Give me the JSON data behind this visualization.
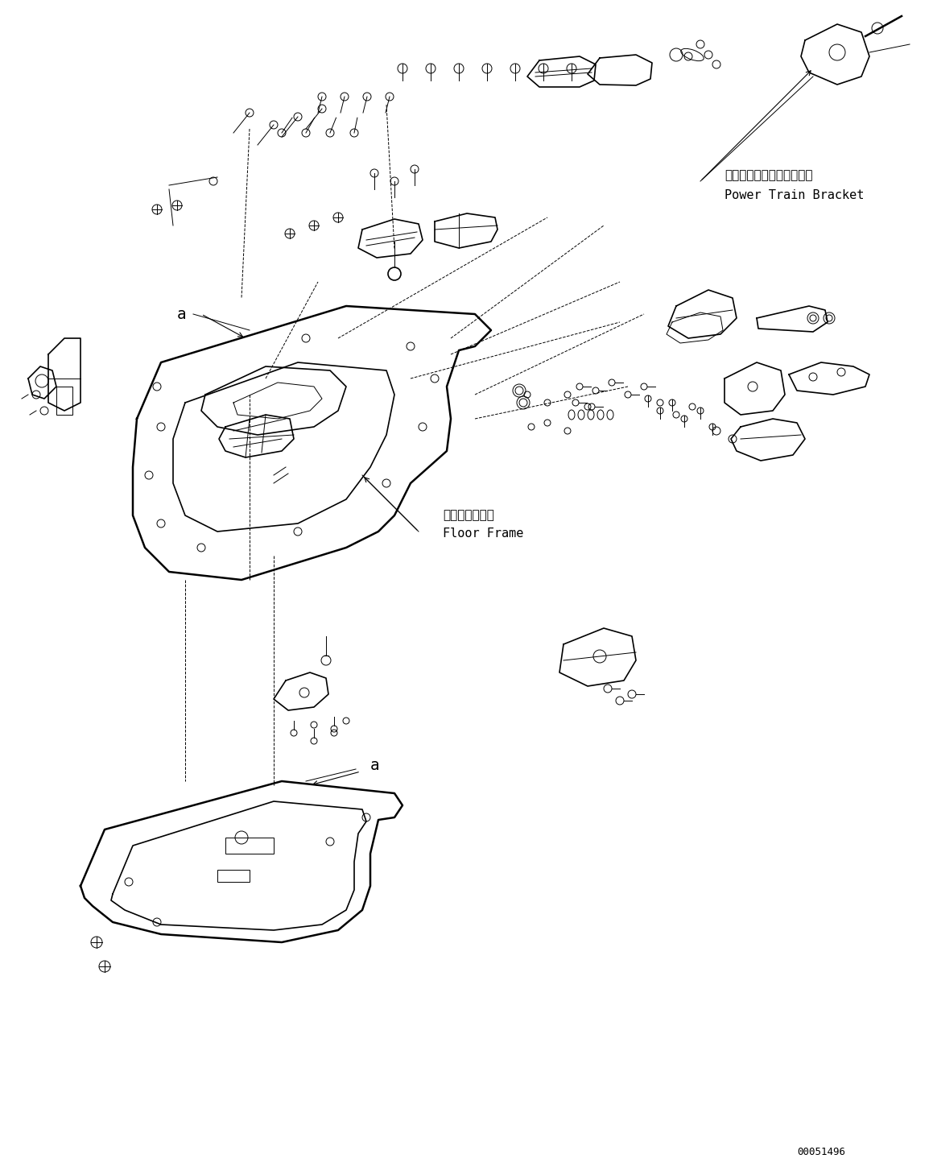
{
  "background_color": "#ffffff",
  "line_color": "#000000",
  "figure_width": 11.59,
  "figure_height": 14.59,
  "dpi": 100,
  "label_power_train_jp": "パワートレインブラケット",
  "label_power_train_en": "Power Train Bracket",
  "label_floor_frame_jp": "フロアフレーム",
  "label_floor_frame_en": "Floor Frame",
  "label_a1": "a",
  "label_a2": "a",
  "part_number": "00051496",
  "lw": 1.2,
  "lw_thin": 0.7,
  "lw_thick": 1.8
}
